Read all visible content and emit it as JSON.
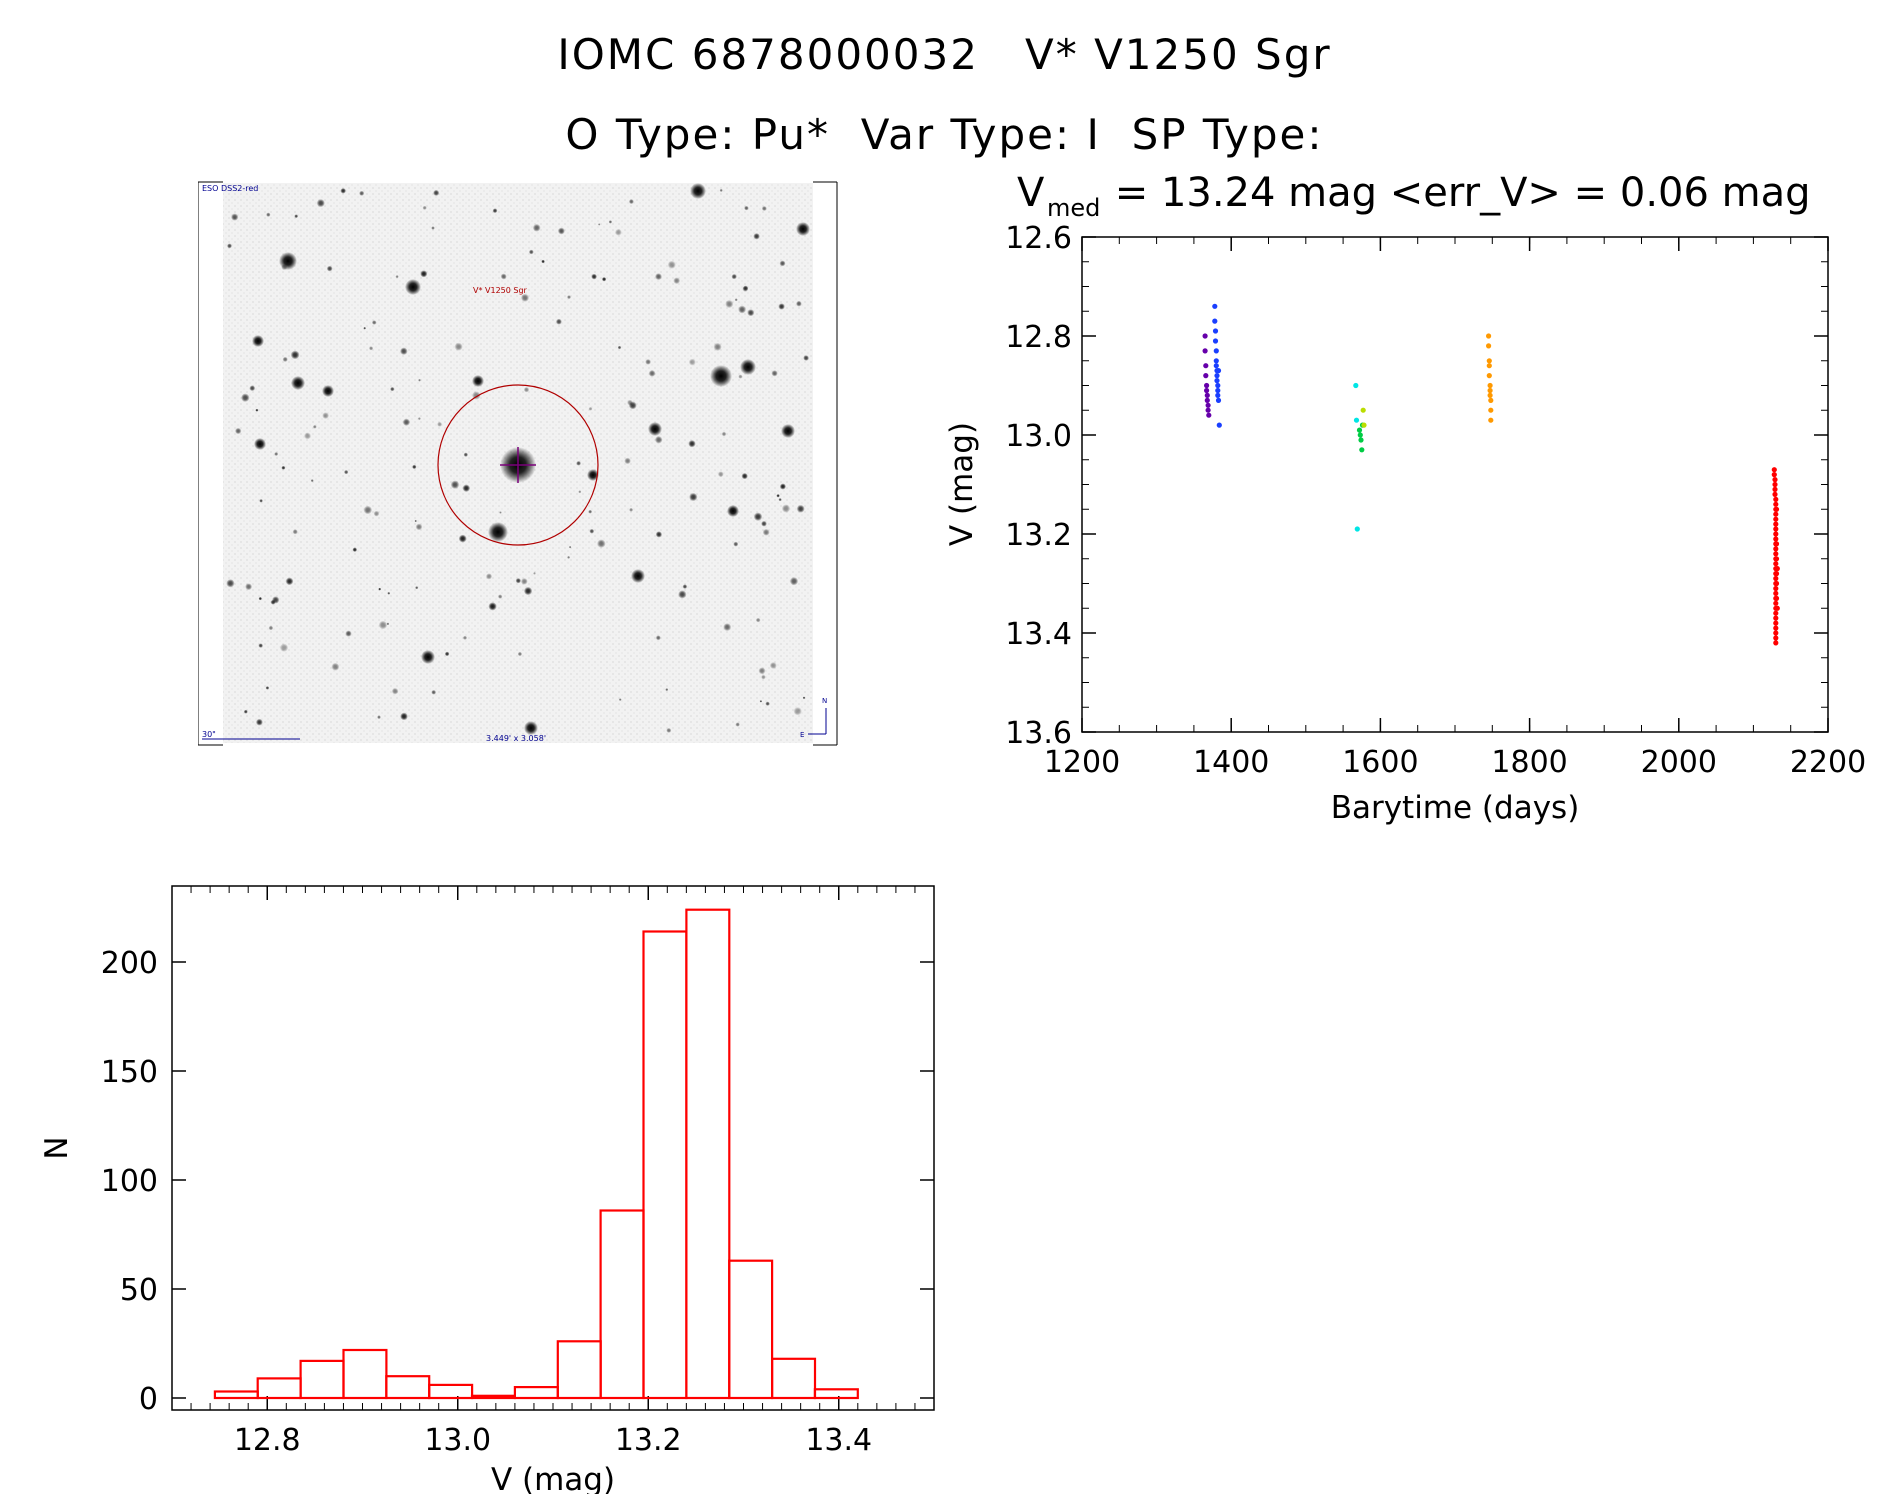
{
  "header": {
    "line1": "IOMC 6878000032   V* V1250 Sgr",
    "line2": "O Type: Pu*  Var Type: I  SP Type:"
  },
  "finder": {
    "survey_label": "ESO DSS2-red",
    "target_label": "V* V1250 Sgr",
    "scale_label": "30\"",
    "fov_label": "3.449' x 3.058'",
    "north_label": "N",
    "east_label": "E"
  },
  "colors": {
    "hist": "#ff0000",
    "circle": "#b00000",
    "annot": "#000090"
  },
  "chart_data": [
    {
      "type": "scatter",
      "title_main": "V",
      "title_sub": "med",
      "title_rest": " = 13.24 mag <err_V> = 0.06 mag",
      "xlabel": "Barytime (days)",
      "ylabel": "V (mag)",
      "xlim": [
        1200,
        2200
      ],
      "ylim": [
        13.6,
        12.6
      ],
      "xticks": [
        "1200",
        "1400",
        "1600",
        "1800",
        "2000",
        "2200"
      ],
      "yticks": [
        "12.6",
        "12.8",
        "13.0",
        "13.2",
        "13.4",
        "13.6"
      ],
      "series": [
        {
          "name": "group-1",
          "color": "#6600aa",
          "x": [
            1365,
            1365,
            1366,
            1366,
            1367,
            1367,
            1368,
            1368,
            1369,
            1369,
            1370
          ],
          "y": [
            12.8,
            12.83,
            12.86,
            12.88,
            12.9,
            12.91,
            12.92,
            12.93,
            12.94,
            12.95,
            12.96
          ]
        },
        {
          "name": "group-2",
          "color": "#1a3fff",
          "x": [
            1378,
            1378,
            1379,
            1379,
            1380,
            1380,
            1380,
            1381,
            1381,
            1381,
            1382,
            1382,
            1382,
            1383,
            1383,
            1384
          ],
          "y": [
            12.74,
            12.77,
            12.79,
            12.81,
            12.83,
            12.85,
            12.86,
            12.87,
            12.88,
            12.89,
            12.9,
            12.91,
            12.92,
            12.93,
            12.87,
            12.98
          ]
        },
        {
          "name": "group-3",
          "color": "#00e5e5",
          "x": [
            1567,
            1568,
            1569
          ],
          "y": [
            12.9,
            12.97,
            13.19
          ]
        },
        {
          "name": "group-4",
          "color": "#00cc44",
          "x": [
            1572,
            1573,
            1574,
            1575,
            1576
          ],
          "y": [
            12.99,
            13.0,
            13.01,
            13.03,
            12.98
          ]
        },
        {
          "name": "group-5",
          "color": "#bbdd00",
          "x": [
            1577,
            1578
          ],
          "y": [
            12.95,
            12.98
          ]
        },
        {
          "name": "group-6",
          "color": "#ff9900",
          "x": [
            1745,
            1745,
            1746,
            1746,
            1746,
            1747,
            1747,
            1747,
            1748,
            1748,
            1748
          ],
          "y": [
            12.8,
            12.82,
            12.85,
            12.86,
            12.88,
            12.9,
            12.91,
            12.92,
            12.93,
            12.95,
            12.97
          ]
        },
        {
          "name": "group-7",
          "color": "#ff0000",
          "x": [
            2128,
            2128,
            2129,
            2129,
            2129,
            2129,
            2130,
            2130,
            2130,
            2130,
            2130,
            2130,
            2130,
            2130,
            2130,
            2130,
            2130,
            2130,
            2130,
            2130,
            2130,
            2130,
            2130,
            2130,
            2130,
            2130,
            2130,
            2130,
            2130,
            2130,
            2130,
            2130,
            2130,
            2130,
            2130,
            2130,
            2131,
            2131,
            2131,
            2131,
            2131,
            2131,
            2132,
            2132
          ],
          "y": [
            13.07,
            13.08,
            13.09,
            13.1,
            13.11,
            13.12,
            13.13,
            13.14,
            13.15,
            13.16,
            13.17,
            13.18,
            13.19,
            13.2,
            13.21,
            13.22,
            13.23,
            13.24,
            13.25,
            13.26,
            13.27,
            13.28,
            13.29,
            13.3,
            13.31,
            13.32,
            13.33,
            13.34,
            13.35,
            13.36,
            13.37,
            13.38,
            13.39,
            13.4,
            13.41,
            13.42,
            13.15,
            13.22,
            13.25,
            13.28,
            13.3,
            13.33,
            13.27,
            13.35
          ]
        }
      ]
    },
    {
      "type": "bar",
      "xlabel": "V (mag)",
      "ylabel": "N",
      "xlim": [
        12.7,
        13.5
      ],
      "ylim": [
        0,
        225
      ],
      "xticks": [
        "12.8",
        "13.0",
        "13.2",
        "13.4"
      ],
      "yticks": [
        "0",
        "50",
        "100",
        "150",
        "200"
      ],
      "bin_edges": [
        12.745,
        12.79,
        12.835,
        12.88,
        12.925,
        12.97,
        13.015,
        13.06,
        13.105,
        13.15,
        13.195,
        13.24,
        13.285,
        13.33,
        13.375,
        13.42
      ],
      "counts": [
        3,
        9,
        17,
        22,
        10,
        6,
        1,
        5,
        26,
        86,
        214,
        224,
        63,
        18,
        4
      ]
    }
  ]
}
